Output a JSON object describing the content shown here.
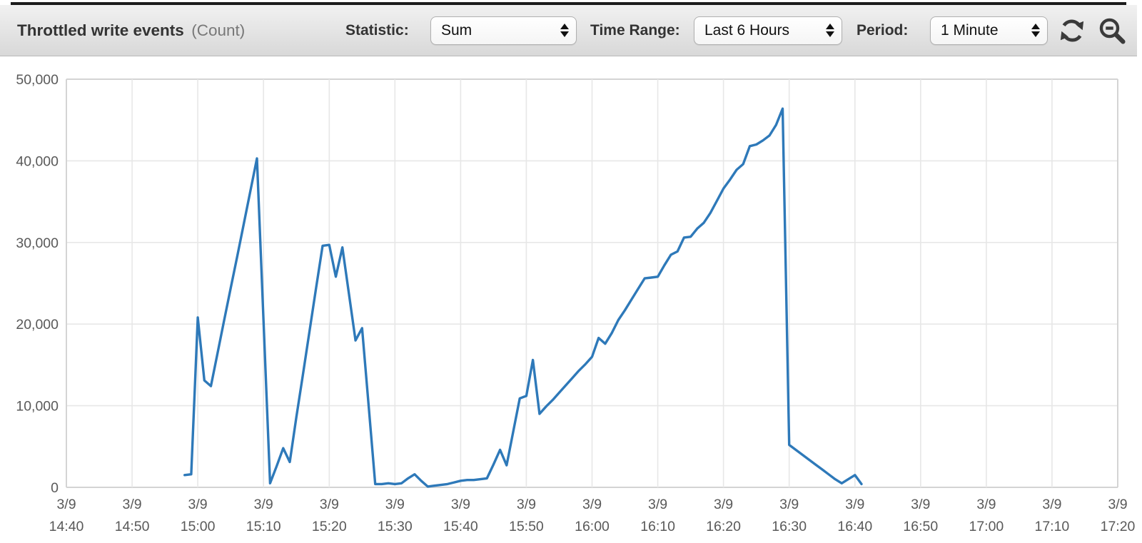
{
  "header": {
    "title": "Throttled write events",
    "title_suffix": "(Count)",
    "statistic_label": "Statistic:",
    "statistic_value": "Sum",
    "time_range_label": "Time Range:",
    "time_range_value": "Last 6 Hours",
    "period_label": "Period:",
    "period_value": "1 Minute"
  },
  "colors": {
    "line": "#2e79b9",
    "grid": "#e7e7e7",
    "plot_border": "#d4d4d4",
    "tick_text": "#595959",
    "icon": "#3a3a3a"
  },
  "chart_data": {
    "type": "line",
    "title": "Throttled write events",
    "unit": "Count",
    "statistic": "Sum",
    "time_range": "Last 6 Hours",
    "period": "1 Minute",
    "grid": true,
    "legend": "none",
    "x_tick_date": "3/9",
    "x_ticks": [
      "14:40",
      "14:50",
      "15:00",
      "15:10",
      "15:20",
      "15:30",
      "15:40",
      "15:50",
      "16:00",
      "16:10",
      "16:20",
      "16:30",
      "16:40",
      "16:50",
      "17:00",
      "17:10",
      "17:20"
    ],
    "ylim": [
      0,
      50000
    ],
    "y_ticks": [
      0,
      10000,
      20000,
      30000,
      40000,
      50000
    ],
    "series": [
      {
        "name": "Throttled write events",
        "points": [
          [
            "14:58",
            1500
          ],
          [
            "14:59",
            1600
          ],
          [
            "15:00",
            20800
          ],
          [
            "15:01",
            13100
          ],
          [
            "15:02",
            12400
          ],
          [
            "15:03",
            16400
          ],
          [
            "15:04",
            20400
          ],
          [
            "15:05",
            24400
          ],
          [
            "15:06",
            28300
          ],
          [
            "15:07",
            32300
          ],
          [
            "15:08",
            36300
          ],
          [
            "15:09",
            40300
          ],
          [
            "15:10",
            20400
          ],
          [
            "15:11",
            500
          ],
          [
            "15:12",
            2600
          ],
          [
            "15:13",
            4800
          ],
          [
            "15:14",
            3100
          ],
          [
            "15:15",
            8600
          ],
          [
            "15:16",
            13800
          ],
          [
            "15:17",
            19100
          ],
          [
            "15:18",
            24400
          ],
          [
            "15:19",
            29600
          ],
          [
            "15:20",
            29700
          ],
          [
            "15:21",
            25800
          ],
          [
            "15:22",
            29400
          ],
          [
            "15:23",
            23700
          ],
          [
            "15:24",
            18000
          ],
          [
            "15:25",
            19500
          ],
          [
            "15:26",
            10000
          ],
          [
            "15:27",
            400
          ],
          [
            "15:28",
            400
          ],
          [
            "15:29",
            500
          ],
          [
            "15:30",
            400
          ],
          [
            "15:31",
            500
          ],
          [
            "15:32",
            1100
          ],
          [
            "15:33",
            1600
          ],
          [
            "15:34",
            800
          ],
          [
            "15:35",
            100
          ],
          [
            "15:36",
            200
          ],
          [
            "15:37",
            300
          ],
          [
            "15:38",
            400
          ],
          [
            "15:39",
            600
          ],
          [
            "15:40",
            800
          ],
          [
            "15:41",
            900
          ],
          [
            "15:42",
            900
          ],
          [
            "15:43",
            1000
          ],
          [
            "15:44",
            1100
          ],
          [
            "15:45",
            2800
          ],
          [
            "15:46",
            4600
          ],
          [
            "15:47",
            2700
          ],
          [
            "15:48",
            6800
          ],
          [
            "15:49",
            10900
          ],
          [
            "15:50",
            11200
          ],
          [
            "15:51",
            15600
          ],
          [
            "15:52",
            9000
          ],
          [
            "15:53",
            9900
          ],
          [
            "15:54",
            10700
          ],
          [
            "15:55",
            11600
          ],
          [
            "15:56",
            12500
          ],
          [
            "15:57",
            13400
          ],
          [
            "15:58",
            14300
          ],
          [
            "15:59",
            15100
          ],
          [
            "16:00",
            16000
          ],
          [
            "16:01",
            18300
          ],
          [
            "16:02",
            17600
          ],
          [
            "16:03",
            18900
          ],
          [
            "16:04",
            20500
          ],
          [
            "16:05",
            21700
          ],
          [
            "16:06",
            23000
          ],
          [
            "16:07",
            24300
          ],
          [
            "16:08",
            25600
          ],
          [
            "16:09",
            25700
          ],
          [
            "16:10",
            25800
          ],
          [
            "16:11",
            27200
          ],
          [
            "16:12",
            28500
          ],
          [
            "16:13",
            28900
          ],
          [
            "16:14",
            30600
          ],
          [
            "16:15",
            30700
          ],
          [
            "16:16",
            31700
          ],
          [
            "16:17",
            32400
          ],
          [
            "16:18",
            33600
          ],
          [
            "16:19",
            35100
          ],
          [
            "16:20",
            36600
          ],
          [
            "16:21",
            37700
          ],
          [
            "16:22",
            38900
          ],
          [
            "16:23",
            39600
          ],
          [
            "16:24",
            41800
          ],
          [
            "16:25",
            42000
          ],
          [
            "16:26",
            42500
          ],
          [
            "16:27",
            43100
          ],
          [
            "16:28",
            44400
          ],
          [
            "16:29",
            46400
          ],
          [
            "16:30",
            5200
          ],
          [
            "16:31",
            4600
          ],
          [
            "16:32",
            4000
          ],
          [
            "16:33",
            3400
          ],
          [
            "16:34",
            2800
          ],
          [
            "16:35",
            2200
          ],
          [
            "16:36",
            1600
          ],
          [
            "16:37",
            1000
          ],
          [
            "16:38",
            500
          ],
          [
            "16:39",
            1000
          ],
          [
            "16:40",
            1500
          ],
          [
            "16:41",
            400
          ]
        ]
      }
    ]
  }
}
